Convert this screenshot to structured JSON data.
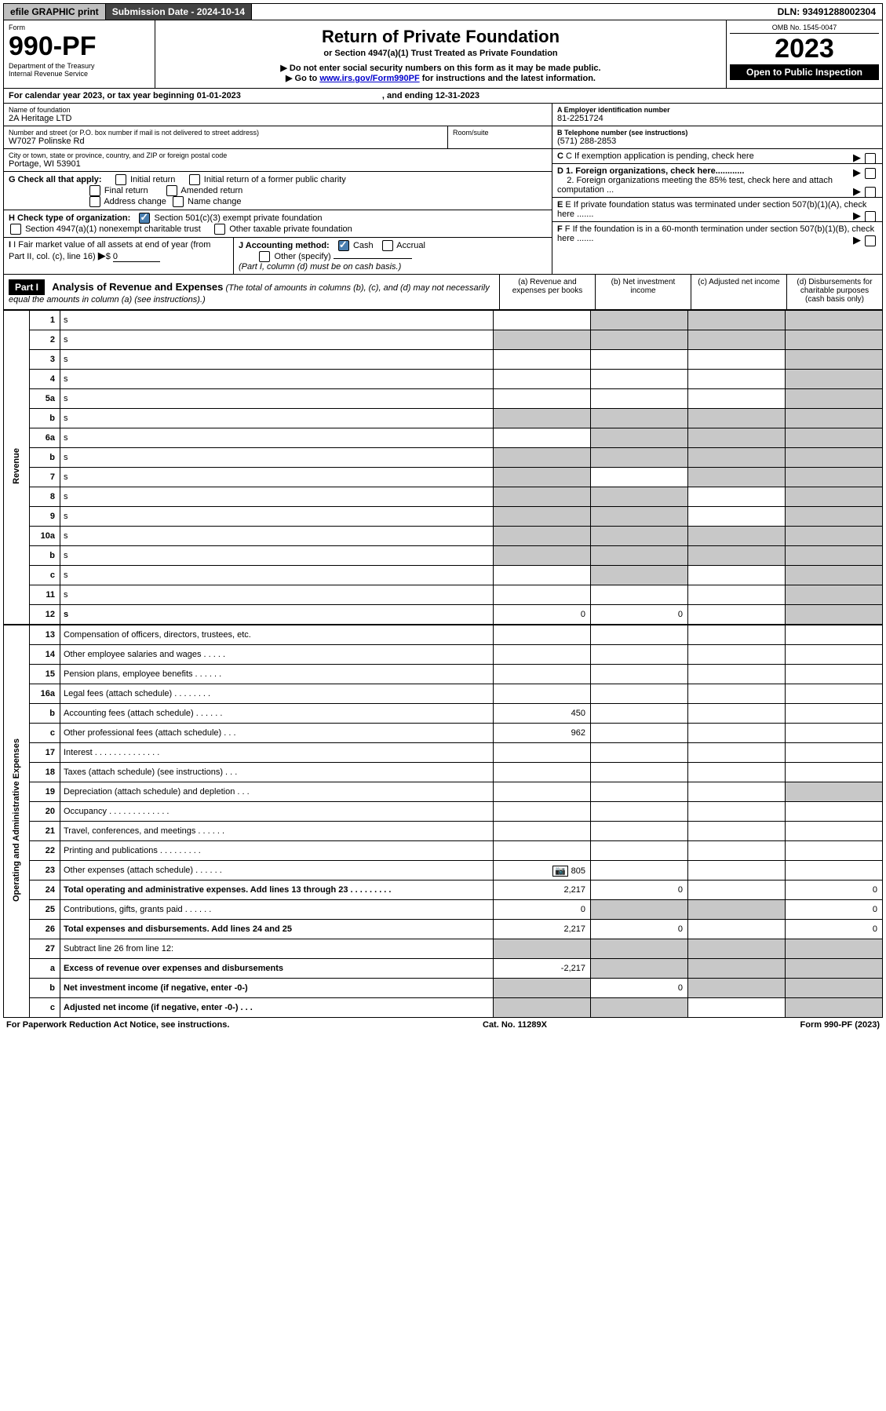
{
  "top": {
    "efile": "efile GRAPHIC print",
    "sub_label": "Submission Date - 2024-10-14",
    "dln": "DLN: 93491288002304"
  },
  "header": {
    "form_word": "Form",
    "form_num": "990-PF",
    "dept": "Department of the Treasury",
    "irs": "Internal Revenue Service",
    "title": "Return of Private Foundation",
    "subtitle": "or Section 4947(a)(1) Trust Treated as Private Foundation",
    "note1": "▶ Do not enter social security numbers on this form as it may be made public.",
    "note2_pre": "▶ Go to ",
    "note2_link": "www.irs.gov/Form990PF",
    "note2_post": " for instructions and the latest information.",
    "omb": "OMB No. 1545-0047",
    "year": "2023",
    "open": "Open to Public Inspection"
  },
  "cal": {
    "text": "For calendar year 2023, or tax year beginning 01-01-2023",
    "end": ", and ending 12-31-2023"
  },
  "entity": {
    "name_label": "Name of foundation",
    "name": "2A Heritage LTD",
    "addr_label": "Number and street (or P.O. box number if mail is not delivered to street address)",
    "addr": "W7027 Polinske Rd",
    "room_label": "Room/suite",
    "city_label": "City or town, state or province, country, and ZIP or foreign postal code",
    "city": "Portage, WI  53901",
    "a_label": "A Employer identification number",
    "a_val": "81-2251724",
    "b_label": "B Telephone number (see instructions)",
    "b_val": "(571) 288-2853",
    "c_label": "C If exemption application is pending, check here"
  },
  "checks": {
    "g_label": "G Check all that apply:",
    "g1": "Initial return",
    "g2": "Initial return of a former public charity",
    "g3": "Final return",
    "g4": "Amended return",
    "g5": "Address change",
    "g6": "Name change",
    "h_label": "H Check type of organization:",
    "h1": "Section 501(c)(3) exempt private foundation",
    "h2": "Section 4947(a)(1) nonexempt charitable trust",
    "h3": "Other taxable private foundation",
    "i_label": "I Fair market value of all assets at end of year (from Part II, col. (c), line 16)",
    "i_val": "0",
    "j_label": "J Accounting method:",
    "j1": "Cash",
    "j2": "Accrual",
    "j3": "Other (specify)",
    "j_note": "(Part I, column (d) must be on cash basis.)",
    "d1": "D 1. Foreign organizations, check here............",
    "d2": "2. Foreign organizations meeting the 85% test, check here and attach computation ...",
    "e": "E  If private foundation status was terminated under section 507(b)(1)(A), check here .......",
    "f": "F  If the foundation is in a 60-month termination under section 507(b)(1)(B), check here ......."
  },
  "part1": {
    "label": "Part I",
    "title": "Analysis of Revenue and Expenses",
    "title_note": " (The total of amounts in columns (b), (c), and (d) may not necessarily equal the amounts in column (a) (see instructions).)",
    "col_a": "(a)   Revenue and expenses per books",
    "col_b": "(b)   Net investment income",
    "col_c": "(c)   Adjusted net income",
    "col_d": "(d)   Disbursements for charitable purposes (cash basis only)"
  },
  "sections": {
    "revenue": "Revenue",
    "expenses": "Operating and Administrative Expenses"
  },
  "rows": [
    {
      "n": "1",
      "d": "s",
      "a": "",
      "b": "s",
      "c": "s"
    },
    {
      "n": "2",
      "d": "s",
      "a": "s",
      "b": "s",
      "c": "s"
    },
    {
      "n": "3",
      "d": "s",
      "a": "",
      "b": "",
      "c": ""
    },
    {
      "n": "4",
      "d": "s",
      "a": "",
      "b": "",
      "c": ""
    },
    {
      "n": "5a",
      "d": "s",
      "a": "",
      "b": "",
      "c": ""
    },
    {
      "n": "b",
      "d": "s",
      "a": "s",
      "b": "s",
      "c": "s"
    },
    {
      "n": "6a",
      "d": "s",
      "a": "",
      "b": "s",
      "c": "s"
    },
    {
      "n": "b",
      "d": "s",
      "a": "s",
      "b": "s",
      "c": "s"
    },
    {
      "n": "7",
      "d": "s",
      "a": "s",
      "b": "",
      "c": "s"
    },
    {
      "n": "8",
      "d": "s",
      "a": "s",
      "b": "s",
      "c": ""
    },
    {
      "n": "9",
      "d": "s",
      "a": "s",
      "b": "s",
      "c": ""
    },
    {
      "n": "10a",
      "d": "s",
      "a": "s",
      "b": "s",
      "c": "s"
    },
    {
      "n": "b",
      "d": "s",
      "a": "s",
      "b": "s",
      "c": "s"
    },
    {
      "n": "c",
      "d": "s",
      "a": "",
      "b": "s",
      "c": ""
    },
    {
      "n": "11",
      "d": "s",
      "a": "",
      "b": "",
      "c": ""
    },
    {
      "n": "12",
      "d": "s",
      "a": "0",
      "b": "0",
      "c": "",
      "bold": true
    }
  ],
  "exp_rows": [
    {
      "n": "13",
      "d": "Compensation of officers, directors, trustees, etc.",
      "a": "",
      "b": "",
      "c": "",
      "e": ""
    },
    {
      "n": "14",
      "d": "Other employee salaries and wages   .   .   .   .   .",
      "a": "",
      "b": "",
      "c": "",
      "e": ""
    },
    {
      "n": "15",
      "d": "Pension plans, employee benefits  .   .   .   .   .   .",
      "a": "",
      "b": "",
      "c": "",
      "e": ""
    },
    {
      "n": "16a",
      "d": "Legal fees (attach schedule)  .   .   .   .   .   .   .   .",
      "a": "",
      "b": "",
      "c": "",
      "e": ""
    },
    {
      "n": "b",
      "d": "Accounting fees (attach schedule)  .   .   .   .   .   .",
      "a": "450",
      "b": "",
      "c": "",
      "e": ""
    },
    {
      "n": "c",
      "d": "Other professional fees (attach schedule)    .   .   .",
      "a": "962",
      "b": "",
      "c": "",
      "e": ""
    },
    {
      "n": "17",
      "d": "Interest  .   .   .   .   .   .   .   .   .   .   .   .   .   .",
      "a": "",
      "b": "",
      "c": "",
      "e": ""
    },
    {
      "n": "18",
      "d": "Taxes (attach schedule) (see instructions)    .   .   .",
      "a": "",
      "b": "",
      "c": "",
      "e": ""
    },
    {
      "n": "19",
      "d": "Depreciation (attach schedule) and depletion   .   .   .",
      "a": "",
      "b": "",
      "c": "",
      "e": "s"
    },
    {
      "n": "20",
      "d": "Occupancy  .   .   .   .   .   .   .   .   .   .   .   .   .",
      "a": "",
      "b": "",
      "c": "",
      "e": ""
    },
    {
      "n": "21",
      "d": "Travel, conferences, and meetings  .   .   .   .   .   .",
      "a": "",
      "b": "",
      "c": "",
      "e": ""
    },
    {
      "n": "22",
      "d": "Printing and publications  .   .   .   .   .   .   .   .   .",
      "a": "",
      "b": "",
      "c": "",
      "e": ""
    },
    {
      "n": "23",
      "d": "Other expenses (attach schedule)  .   .   .   .   .   .",
      "a": "805",
      "b": "",
      "c": "",
      "e": "",
      "icon": true
    },
    {
      "n": "24",
      "d": "Total operating and administrative expenses. Add lines 13 through 23   .   .   .   .   .   .   .   .   .",
      "a": "2,217",
      "b": "0",
      "c": "",
      "e": "0",
      "bold": true
    },
    {
      "n": "25",
      "d": "Contributions, gifts, grants paid    .   .   .   .   .   .",
      "a": "0",
      "b": "s",
      "c": "s",
      "e": "0"
    },
    {
      "n": "26",
      "d": "Total expenses and disbursements. Add lines 24 and 25",
      "a": "2,217",
      "b": "0",
      "c": "",
      "e": "0",
      "bold": true
    },
    {
      "n": "27",
      "d": "Subtract line 26 from line 12:",
      "a": "s",
      "b": "s",
      "c": "s",
      "e": "s"
    },
    {
      "n": "a",
      "d": "Excess of revenue over expenses and disbursements",
      "a": "-2,217",
      "b": "s",
      "c": "s",
      "e": "s",
      "bold": true
    },
    {
      "n": "b",
      "d": "Net investment income (if negative, enter -0-)",
      "a": "s",
      "b": "0",
      "c": "s",
      "e": "s",
      "bold": true
    },
    {
      "n": "c",
      "d": "Adjusted net income (if negative, enter -0-)   .   .   .",
      "a": "s",
      "b": "s",
      "c": "",
      "e": "s",
      "bold": true
    }
  ],
  "footer": {
    "left": "For Paperwork Reduction Act Notice, see instructions.",
    "mid": "Cat. No. 11289X",
    "right": "Form 990-PF (2023)"
  }
}
